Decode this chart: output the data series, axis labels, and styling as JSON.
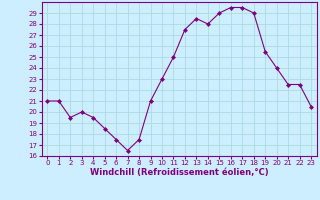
{
  "hours": [
    0,
    1,
    2,
    3,
    4,
    5,
    6,
    7,
    8,
    9,
    10,
    11,
    12,
    13,
    14,
    15,
    16,
    17,
    18,
    19,
    20,
    21,
    22,
    23
  ],
  "values": [
    21,
    21,
    19.5,
    20,
    19.5,
    18.5,
    17.5,
    16.5,
    17.5,
    21,
    23,
    25,
    27.5,
    28.5,
    28,
    29,
    29.5,
    29.5,
    29,
    25.5,
    24,
    22.5,
    22.5,
    20.5
  ],
  "line_color": "#800080",
  "marker": "D",
  "marker_size": 2,
  "bg_color": "#cceeff",
  "grid_color": "#aadddd",
  "xlabel": "Windchill (Refroidissement éolien,°C)",
  "xlabel_color": "#800080",
  "tick_color": "#800080",
  "ylim": [
    16,
    30
  ],
  "xlim": [
    -0.5,
    23.5
  ],
  "yticks": [
    16,
    17,
    18,
    19,
    20,
    21,
    22,
    23,
    24,
    25,
    26,
    27,
    28,
    29
  ],
  "xticks": [
    0,
    1,
    2,
    3,
    4,
    5,
    6,
    7,
    8,
    9,
    10,
    11,
    12,
    13,
    14,
    15,
    16,
    17,
    18,
    19,
    20,
    21,
    22,
    23
  ]
}
